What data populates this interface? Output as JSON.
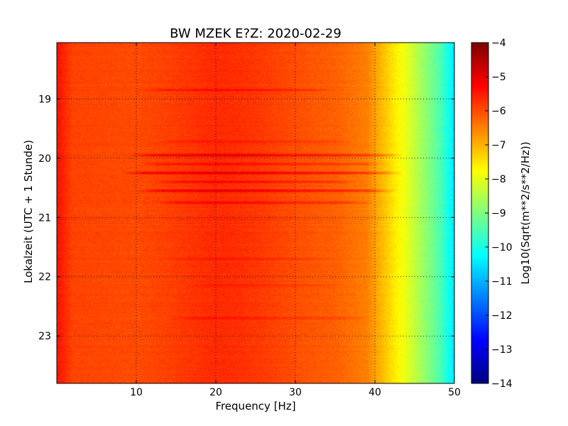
{
  "chart_data": {
    "type": "heatmap",
    "title": "BW MZEK E?Z: 2020-02-29",
    "xlabel": "Frequency [Hz]",
    "ylabel": "Lokalzeit (UTC + 1 Stunde)",
    "xlim": [
      0,
      50
    ],
    "ylim": [
      18.05,
      23.8
    ],
    "y_inverted": true,
    "x_ticks": [
      10,
      20,
      30,
      40,
      50
    ],
    "y_ticks": [
      19,
      20,
      21,
      22,
      23
    ],
    "grid": true,
    "colorbar": {
      "label": "Log10(Sqrt(m**2/s**2/Hz))",
      "range": [
        -14,
        -4
      ],
      "ticks": [
        -4,
        -5,
        -6,
        -7,
        -8,
        -9,
        -10,
        -11,
        -12,
        -13,
        -14
      ],
      "colormap": "jet"
    },
    "frequency_profile": [
      {
        "f": 0,
        "v": -5.4
      },
      {
        "f": 2,
        "v": -5.9
      },
      {
        "f": 10,
        "v": -6.0
      },
      {
        "f": 20,
        "v": -5.9
      },
      {
        "f": 35,
        "v": -6.2
      },
      {
        "f": 39,
        "v": -6.5
      },
      {
        "f": 42,
        "v": -7.4
      },
      {
        "f": 44,
        "v": -8.0
      },
      {
        "f": 46,
        "v": -8.7
      },
      {
        "f": 48,
        "v": -9.4
      },
      {
        "f": 49.5,
        "v": -10.2
      },
      {
        "f": 50,
        "v": -10.6
      }
    ],
    "events": [
      {
        "time": 18.85,
        "f_min": 10,
        "f_max": 35,
        "delta": 0.4
      },
      {
        "time": 19.72,
        "f_min": 12,
        "f_max": 38,
        "delta": 0.3
      },
      {
        "time": 19.95,
        "f_min": 9,
        "f_max": 44,
        "delta": 0.8
      },
      {
        "time": 20.1,
        "f_min": 10,
        "f_max": 42,
        "delta": 0.5
      },
      {
        "time": 20.25,
        "f_min": 8,
        "f_max": 44,
        "delta": 0.9
      },
      {
        "time": 20.4,
        "f_min": 12,
        "f_max": 38,
        "delta": 0.5
      },
      {
        "time": 20.55,
        "f_min": 10,
        "f_max": 43,
        "delta": 0.8
      },
      {
        "time": 20.75,
        "f_min": 12,
        "f_max": 40,
        "delta": 0.5
      },
      {
        "time": 21.7,
        "f_min": 13,
        "f_max": 35,
        "delta": 0.2
      },
      {
        "time": 22.15,
        "f_min": 16,
        "f_max": 36,
        "delta": 0.2
      },
      {
        "time": 22.7,
        "f_min": 14,
        "f_max": 40,
        "delta": 0.35
      }
    ],
    "band_enhancement": {
      "f_center": 22,
      "f_width": 8,
      "delta": 0.25
    }
  }
}
